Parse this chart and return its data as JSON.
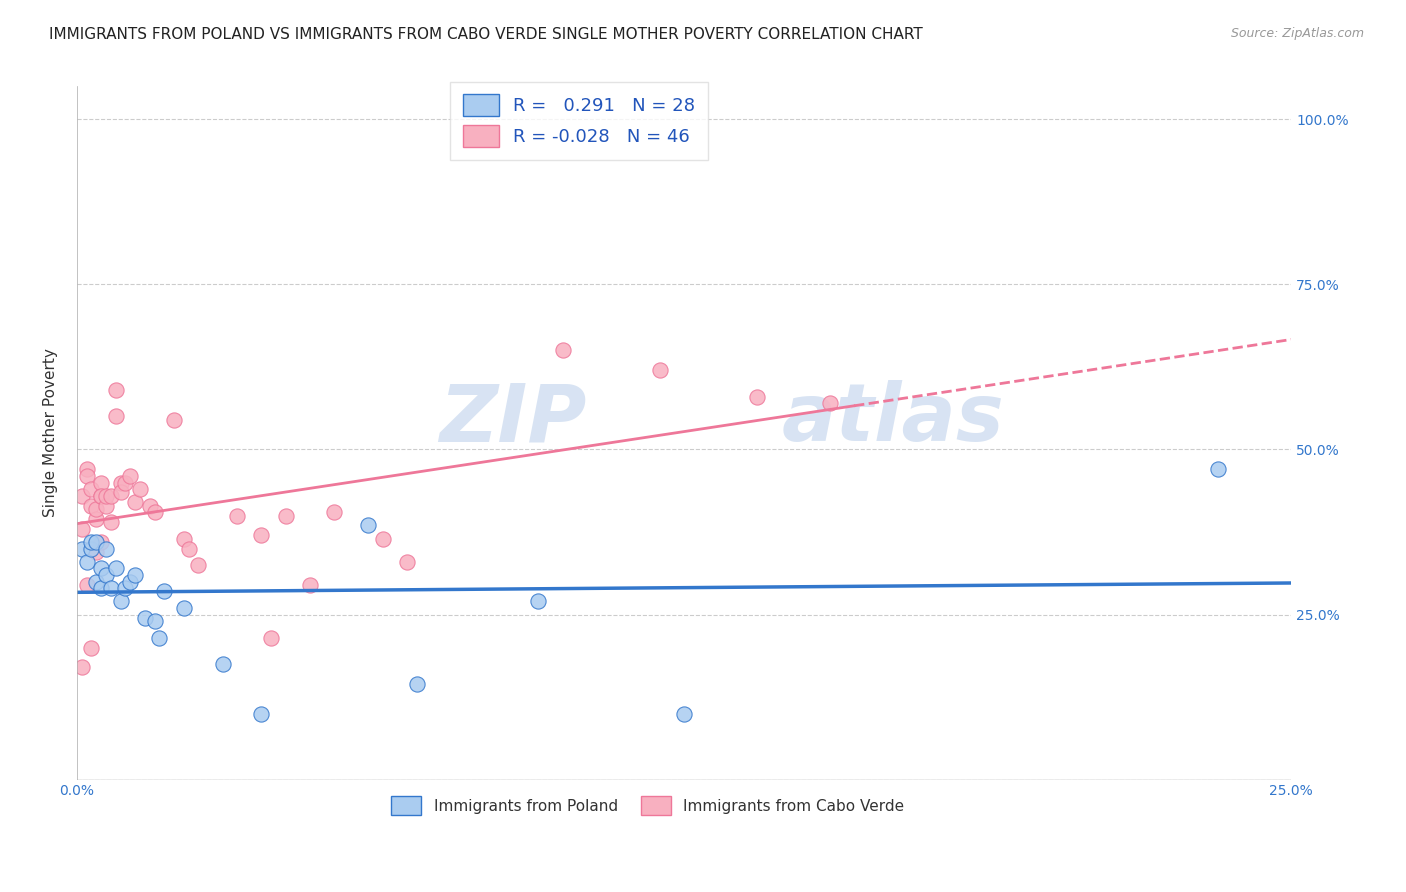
{
  "title": "IMMIGRANTS FROM POLAND VS IMMIGRANTS FROM CABO VERDE SINGLE MOTHER POVERTY CORRELATION CHART",
  "source": "Source: ZipAtlas.com",
  "ylabel": "Single Mother Poverty",
  "xlim": [
    0.0,
    0.25
  ],
  "ylim": [
    0.0,
    1.05
  ],
  "xticks": [
    0.0,
    0.05,
    0.1,
    0.15,
    0.2,
    0.25
  ],
  "xticklabels": [
    "0.0%",
    "",
    "",
    "",
    "",
    "25.0%"
  ],
  "yticks_right": [
    0.0,
    0.25,
    0.5,
    0.75,
    1.0
  ],
  "yticklabels_right": [
    "",
    "25.0%",
    "50.0%",
    "75.0%",
    "100.0%"
  ],
  "legend_poland_r": "0.291",
  "legend_poland_n": "28",
  "legend_cv_r": "-0.028",
  "legend_cv_n": "46",
  "poland_color": "#aaccf0",
  "cabo_verde_color": "#f8b0c0",
  "poland_line_color": "#3377cc",
  "cabo_verde_line_color": "#ee7799",
  "watermark_zip": "ZIP",
  "watermark_atlas": "atlas",
  "background_color": "#ffffff",
  "poland_x": [
    0.001,
    0.002,
    0.003,
    0.003,
    0.004,
    0.004,
    0.005,
    0.005,
    0.006,
    0.006,
    0.007,
    0.008,
    0.009,
    0.01,
    0.011,
    0.012,
    0.014,
    0.016,
    0.017,
    0.018,
    0.022,
    0.03,
    0.038,
    0.06,
    0.07,
    0.095,
    0.125,
    0.235
  ],
  "poland_y": [
    0.35,
    0.33,
    0.35,
    0.36,
    0.3,
    0.36,
    0.29,
    0.32,
    0.31,
    0.35,
    0.29,
    0.32,
    0.27,
    0.29,
    0.3,
    0.31,
    0.245,
    0.24,
    0.215,
    0.285,
    0.26,
    0.175,
    0.1,
    0.385,
    0.145,
    0.27,
    0.1,
    0.47
  ],
  "cabo_verde_x": [
    0.001,
    0.001,
    0.001,
    0.002,
    0.002,
    0.002,
    0.003,
    0.003,
    0.003,
    0.004,
    0.004,
    0.004,
    0.005,
    0.005,
    0.005,
    0.005,
    0.006,
    0.006,
    0.007,
    0.007,
    0.008,
    0.008,
    0.009,
    0.009,
    0.01,
    0.011,
    0.012,
    0.013,
    0.015,
    0.016,
    0.02,
    0.022,
    0.023,
    0.025,
    0.033,
    0.038,
    0.04,
    0.043,
    0.048,
    0.053,
    0.063,
    0.068,
    0.1,
    0.12,
    0.14,
    0.155
  ],
  "cabo_verde_y": [
    0.43,
    0.38,
    0.17,
    0.47,
    0.46,
    0.295,
    0.44,
    0.415,
    0.2,
    0.395,
    0.41,
    0.345,
    0.43,
    0.45,
    0.43,
    0.36,
    0.415,
    0.43,
    0.39,
    0.43,
    0.59,
    0.55,
    0.45,
    0.435,
    0.45,
    0.46,
    0.42,
    0.44,
    0.415,
    0.405,
    0.545,
    0.365,
    0.35,
    0.325,
    0.4,
    0.37,
    0.215,
    0.4,
    0.295,
    0.405,
    0.365,
    0.33,
    0.65,
    0.62,
    0.58,
    0.57
  ],
  "title_fontsize": 11,
  "axis_label_fontsize": 11,
  "tick_fontsize": 10,
  "legend_text_color_r_poland": "#2255bb",
  "legend_text_color_n_poland": "#2255bb",
  "legend_text_color_r_cv": "#dd2255",
  "legend_text_color_n_cv": "#2255bb"
}
